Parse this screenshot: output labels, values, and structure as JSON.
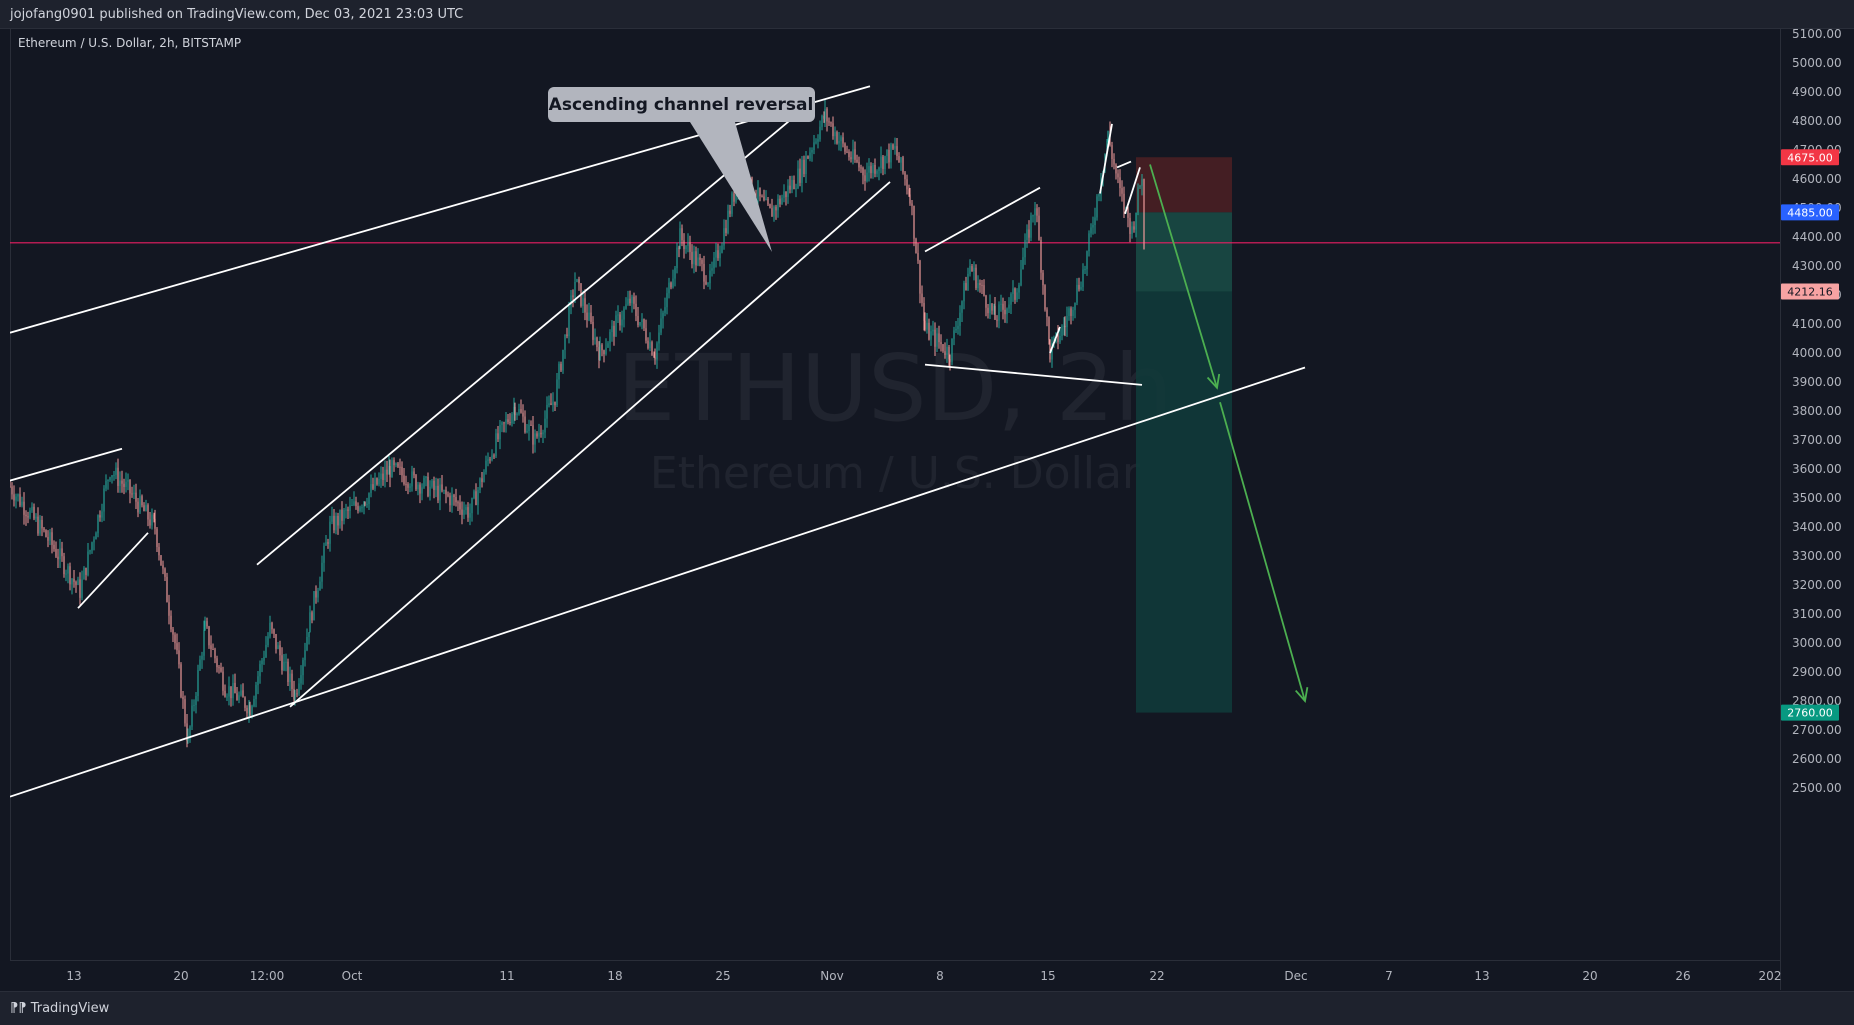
{
  "header": {
    "published_by": "jojofang0901 published on TradingView.com, Dec 03, 2021 23:03 UTC"
  },
  "symbol": {
    "title": "Ethereum / U.S. Dollar, 2h, BITSTAMP",
    "watermark_ticker": "ETHUSD, 2h",
    "watermark_name": "Ethereum / U.S. Dollar"
  },
  "footer": {
    "brand": "TradingView",
    "logo_icon": "tradingview-logo-icon"
  },
  "colors": {
    "background": "#131722",
    "up_candle": "#26a69a",
    "down_candle": "#ef9a9a",
    "trendline": "#ffffff",
    "horizontal_level": "#e91e63",
    "forecast_arrow": "#4caf50",
    "stop_zone": "#4a1f24",
    "target_zone": "#113a3a",
    "tag_stop": "#f23645",
    "tag_entry": "#2962ff",
    "tag_current": "#f7a3a3",
    "tag_target": "#089981",
    "callout": "#b2b5be"
  },
  "chart_data": {
    "type": "candlestick",
    "title": "Ethereum / U.S. Dollar, 2h, BITSTAMP",
    "ylim": [
      2420,
      5120
    ],
    "y_ticks": [
      2500,
      2600,
      2700,
      2800,
      2900,
      3000,
      3100,
      3200,
      3300,
      3400,
      3500,
      3600,
      3700,
      3800,
      3900,
      4000,
      4100,
      4200,
      4300,
      4400,
      4500,
      4600,
      4700,
      4800,
      4900,
      5000,
      5100
    ],
    "x_tick_labels": [
      "13",
      "20",
      "12:00",
      "Oct",
      "11",
      "18",
      "25",
      "Nov",
      "8",
      "15",
      "22",
      "Dec",
      "7",
      "13",
      "20",
      "26",
      "202"
    ],
    "price_path": [
      [
        0,
        3540
      ],
      [
        40,
        3350
      ],
      [
        70,
        3180
      ],
      [
        100,
        3600
      ],
      [
        120,
        3520
      ],
      [
        145,
        3400
      ],
      [
        165,
        3000
      ],
      [
        178,
        2660
      ],
      [
        195,
        3050
      ],
      [
        215,
        2850
      ],
      [
        240,
        2780
      ],
      [
        260,
        3050
      ],
      [
        285,
        2820
      ],
      [
        300,
        3080
      ],
      [
        320,
        3400
      ],
      [
        355,
        3500
      ],
      [
        380,
        3600
      ],
      [
        410,
        3550
      ],
      [
        440,
        3500
      ],
      [
        460,
        3450
      ],
      [
        480,
        3650
      ],
      [
        505,
        3820
      ],
      [
        525,
        3700
      ],
      [
        545,
        3850
      ],
      [
        565,
        4250
      ],
      [
        590,
        4000
      ],
      [
        620,
        4180
      ],
      [
        645,
        4000
      ],
      [
        670,
        4400
      ],
      [
        700,
        4250
      ],
      [
        730,
        4620
      ],
      [
        760,
        4480
      ],
      [
        790,
        4620
      ],
      [
        815,
        4820
      ],
      [
        835,
        4700
      ],
      [
        855,
        4620
      ],
      [
        885,
        4700
      ],
      [
        900,
        4550
      ],
      [
        915,
        4080
      ],
      [
        940,
        4000
      ],
      [
        960,
        4300
      ],
      [
        985,
        4120
      ],
      [
        1005,
        4200
      ],
      [
        1025,
        4520
      ],
      [
        1040,
        4000
      ],
      [
        1055,
        4100
      ],
      [
        1075,
        4300
      ],
      [
        1098,
        4750
      ],
      [
        1110,
        4550
      ],
      [
        1122,
        4420
      ],
      [
        1132,
        4620
      ],
      [
        1135,
        4212.16
      ]
    ],
    "annotations": {
      "callout_label": "Ascending channel reversal",
      "horizontal_level": 4380,
      "position": {
        "type": "short",
        "stop": 4675.0,
        "entry": 4485.0,
        "current": 4212.16,
        "target": 2760.0
      },
      "trendlines": [
        {
          "from": [
            0,
            4070
          ],
          "to": [
            860,
            4920
          ]
        },
        {
          "from": [
            0,
            2470
          ],
          "to": [
            1295,
            3950
          ]
        },
        {
          "from": [
            247,
            3270
          ],
          "to": [
            800,
            4860
          ]
        },
        {
          "from": [
            280,
            2780
          ],
          "to": [
            880,
            4590
          ]
        },
        {
          "from": [
            0,
            3560
          ],
          "to": [
            112,
            3670
          ]
        },
        {
          "from": [
            68,
            3120
          ],
          "to": [
            138,
            3380
          ]
        },
        {
          "from": [
            915,
            4350
          ],
          "to": [
            1030,
            4570
          ]
        },
        {
          "from": [
            915,
            3960
          ],
          "to": [
            1132,
            3890
          ]
        },
        {
          "from": [
            1040,
            4000
          ],
          "to": [
            1050,
            4090
          ]
        },
        {
          "from": [
            1090,
            4550
          ],
          "to": [
            1102,
            4790
          ]
        },
        {
          "from": [
            1107,
            4640
          ],
          "to": [
            1121,
            4660
          ]
        },
        {
          "from": [
            1115,
            4480
          ],
          "to": [
            1130,
            4640
          ]
        }
      ],
      "forecast_arrows": [
        {
          "from": [
            1140,
            4650
          ],
          "to": [
            1207,
            3880
          ]
        },
        {
          "from": [
            1210,
            3830
          ],
          "to": [
            1295,
            2800
          ]
        }
      ]
    }
  }
}
